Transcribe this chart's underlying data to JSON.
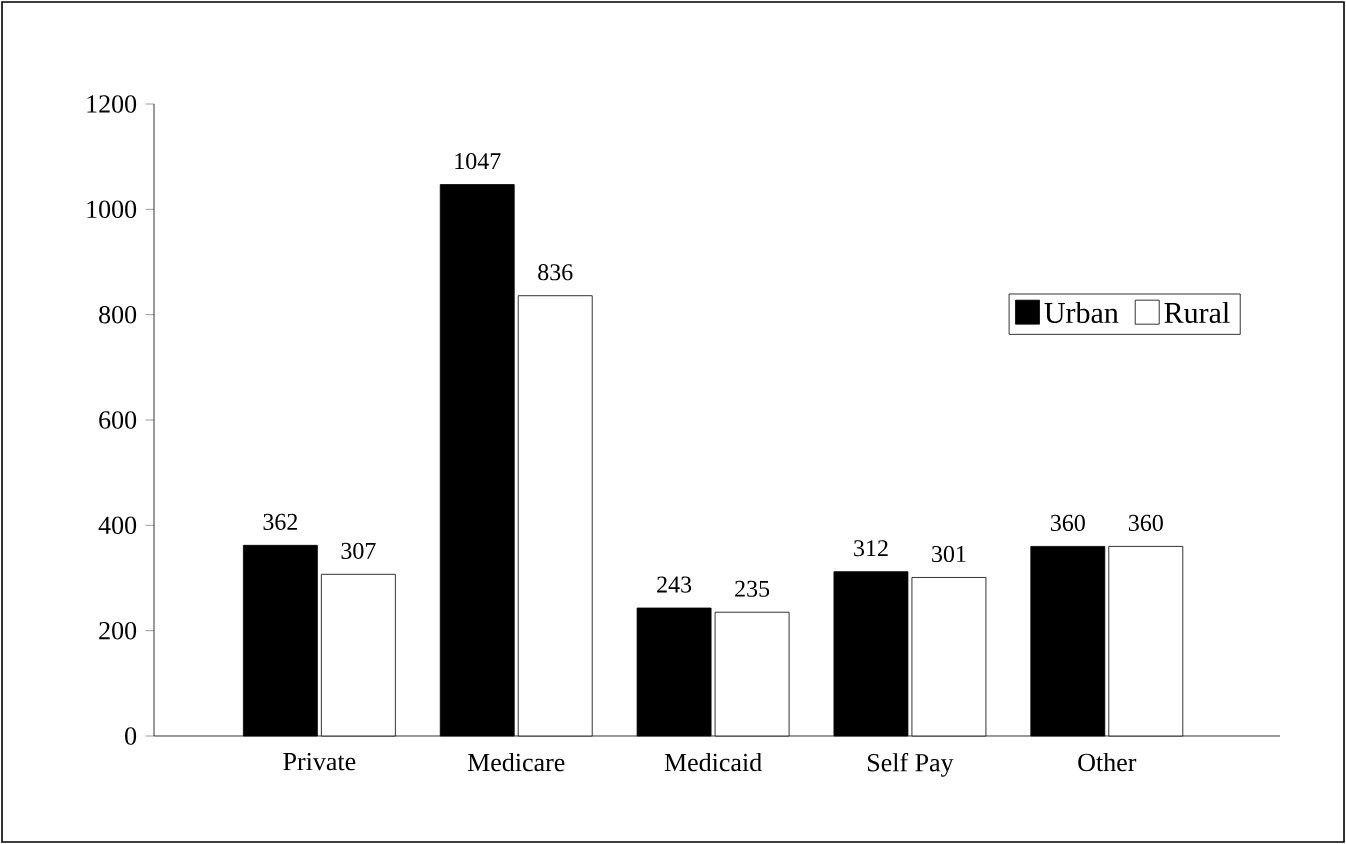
{
  "chart_data": {
    "type": "bar",
    "categories": [
      "Private",
      "Medicare",
      "Medicaid",
      "Self Pay",
      "Other"
    ],
    "series": [
      {
        "name": "Urban",
        "color": "#000000",
        "values": [
          362,
          1047,
          243,
          312,
          360
        ]
      },
      {
        "name": "Rural",
        "color": "#ffffff",
        "values": [
          307,
          836,
          235,
          301,
          360
        ]
      }
    ],
    "ylim": [
      0,
      1200
    ],
    "yticks": [
      0,
      200,
      400,
      600,
      800,
      1000,
      1200
    ],
    "data_labels": true,
    "legend": "top right",
    "grid": false
  }
}
